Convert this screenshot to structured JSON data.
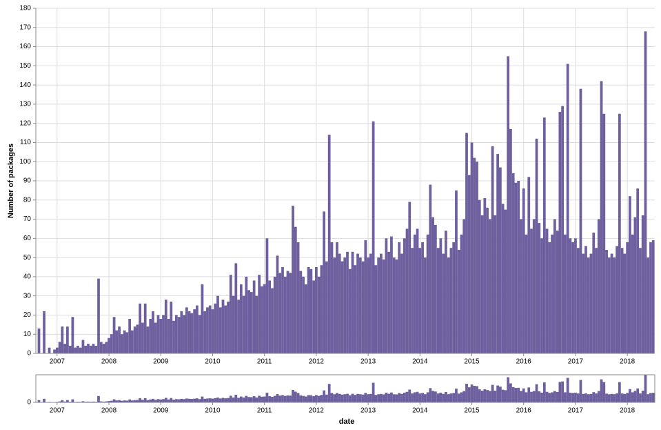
{
  "chart_data": {
    "type": "bar",
    "ylabel": "Number of packages",
    "xlabel": "date",
    "color": "#6e5f9f",
    "grid": true,
    "xlim": [
      2006.59,
      2018.53
    ],
    "ylim": [
      0,
      180
    ],
    "xticks": [
      2007,
      2008,
      2009,
      2010,
      2011,
      2012,
      2013,
      2014,
      2015,
      2016,
      2017,
      2018
    ],
    "yticks": [
      0,
      10,
      20,
      30,
      40,
      50,
      60,
      70,
      80,
      90,
      100,
      110,
      120,
      130,
      140,
      150,
      160,
      170,
      180
    ],
    "overview": {
      "ylim": [
        0,
        170
      ],
      "yticks": [
        0
      ]
    },
    "x": [
      2006.6,
      2006.65,
      2006.7,
      2006.75,
      2006.8,
      2006.85,
      2006.9,
      2006.95,
      2007,
      2007.05,
      2007.1,
      2007.15,
      2007.2,
      2007.25,
      2007.3,
      2007.35,
      2007.4,
      2007.45,
      2007.5,
      2007.55,
      2007.6,
      2007.65,
      2007.7,
      2007.75,
      2007.8,
      2007.85,
      2007.9,
      2007.95,
      2008,
      2008.05,
      2008.1,
      2008.15,
      2008.2,
      2008.25,
      2008.3,
      2008.35,
      2008.4,
      2008.45,
      2008.5,
      2008.55,
      2008.6,
      2008.65,
      2008.7,
      2008.75,
      2008.8,
      2008.85,
      2008.9,
      2008.95,
      2009,
      2009.05,
      2009.1,
      2009.15,
      2009.2,
      2009.25,
      2009.3,
      2009.35,
      2009.4,
      2009.45,
      2009.5,
      2009.55,
      2009.6,
      2009.65,
      2009.7,
      2009.75,
      2009.8,
      2009.85,
      2009.9,
      2009.95,
      2010,
      2010.05,
      2010.1,
      2010.15,
      2010.2,
      2010.25,
      2010.3,
      2010.35,
      2010.4,
      2010.45,
      2010.5,
      2010.55,
      2010.6,
      2010.65,
      2010.7,
      2010.75,
      2010.8,
      2010.85,
      2010.9,
      2010.95,
      2011,
      2011.05,
      2011.1,
      2011.15,
      2011.2,
      2011.25,
      2011.3,
      2011.35,
      2011.4,
      2011.45,
      2011.5,
      2011.55,
      2011.6,
      2011.65,
      2011.7,
      2011.75,
      2011.8,
      2011.85,
      2011.9,
      2011.95,
      2012,
      2012.05,
      2012.1,
      2012.15,
      2012.2,
      2012.25,
      2012.3,
      2012.35,
      2012.4,
      2012.45,
      2012.5,
      2012.55,
      2012.6,
      2012.65,
      2012.7,
      2012.75,
      2012.8,
      2012.85,
      2012.9,
      2012.95,
      2013,
      2013.05,
      2013.1,
      2013.15,
      2013.2,
      2013.25,
      2013.3,
      2013.35,
      2013.4,
      2013.45,
      2013.5,
      2013.55,
      2013.6,
      2013.65,
      2013.7,
      2013.75,
      2013.8,
      2013.85,
      2013.9,
      2013.95,
      2014,
      2014.05,
      2014.1,
      2014.15,
      2014.2,
      2014.25,
      2014.3,
      2014.35,
      2014.4,
      2014.45,
      2014.5,
      2014.55,
      2014.6,
      2014.65,
      2014.7,
      2014.75,
      2014.8,
      2014.85,
      2014.9,
      2014.95,
      2015,
      2015.05,
      2015.1,
      2015.15,
      2015.2,
      2015.25,
      2015.3,
      2015.35,
      2015.4,
      2015.45,
      2015.5,
      2015.55,
      2015.6,
      2015.65,
      2015.7,
      2015.75,
      2015.8,
      2015.85,
      2015.9,
      2015.95,
      2016,
      2016.05,
      2016.1,
      2016.15,
      2016.2,
      2016.25,
      2016.3,
      2016.35,
      2016.4,
      2016.45,
      2016.5,
      2016.55,
      2016.6,
      2016.65,
      2016.7,
      2016.75,
      2016.8,
      2016.85,
      2016.9,
      2016.95,
      2017,
      2017.05,
      2017.1,
      2017.15,
      2017.2,
      2017.25,
      2017.3,
      2017.35,
      2017.4,
      2017.45,
      2017.5,
      2017.55,
      2017.6,
      2017.65,
      2017.7,
      2017.75,
      2017.8,
      2017.85,
      2017.9,
      2017.95,
      2018,
      2018.05,
      2018.1,
      2018.15,
      2018.2,
      2018.25,
      2018.3,
      2018.35,
      2018.4,
      2018.45,
      2018.5
    ],
    "values": [
      0,
      13,
      0,
      22,
      0,
      3,
      0,
      2,
      3,
      6,
      14,
      5,
      14,
      4,
      19,
      3,
      4,
      3,
      7,
      4,
      5,
      4,
      5,
      4,
      39,
      6,
      5,
      6,
      8,
      10,
      19,
      12,
      14,
      10,
      12,
      11,
      18,
      12,
      14,
      15,
      26,
      16,
      26,
      14,
      18,
      22,
      16,
      20,
      18,
      20,
      28,
      18,
      27,
      17,
      20,
      19,
      22,
      20,
      24,
      22,
      21,
      23,
      25,
      20,
      36,
      22,
      24,
      25,
      23,
      26,
      30,
      24,
      28,
      25,
      27,
      41,
      30,
      47,
      28,
      36,
      30,
      40,
      33,
      32,
      38,
      30,
      41,
      35,
      36,
      60,
      38,
      34,
      40,
      51,
      42,
      45,
      40,
      43,
      42,
      77,
      66,
      58,
      43,
      40,
      36,
      45,
      44,
      38,
      45,
      40,
      46,
      74,
      48,
      114,
      58,
      50,
      58,
      52,
      48,
      50,
      53,
      44,
      53,
      46,
      52,
      50,
      48,
      59,
      50,
      52,
      121,
      46,
      50,
      52,
      49,
      60,
      53,
      61,
      50,
      49,
      58,
      52,
      60,
      65,
      79,
      55,
      62,
      65,
      55,
      58,
      50,
      62,
      88,
      71,
      67,
      55,
      60,
      52,
      64,
      50,
      55,
      58,
      85,
      54,
      62,
      70,
      115,
      93,
      110,
      102,
      100,
      80,
      72,
      81,
      76,
      70,
      108,
      72,
      104,
      97,
      78,
      75,
      155,
      117,
      94,
      89,
      90,
      70,
      86,
      62,
      92,
      65,
      70,
      112,
      68,
      60,
      123,
      65,
      58,
      62,
      70,
      64,
      126,
      129,
      62,
      151,
      60,
      58,
      60,
      55,
      138,
      52,
      56,
      50,
      52,
      63,
      55,
      70,
      142,
      125,
      54,
      50,
      52,
      50,
      56,
      125,
      55,
      52,
      58,
      82,
      62,
      71,
      86,
      55,
      72,
      168,
      50,
      58,
      59
    ]
  }
}
